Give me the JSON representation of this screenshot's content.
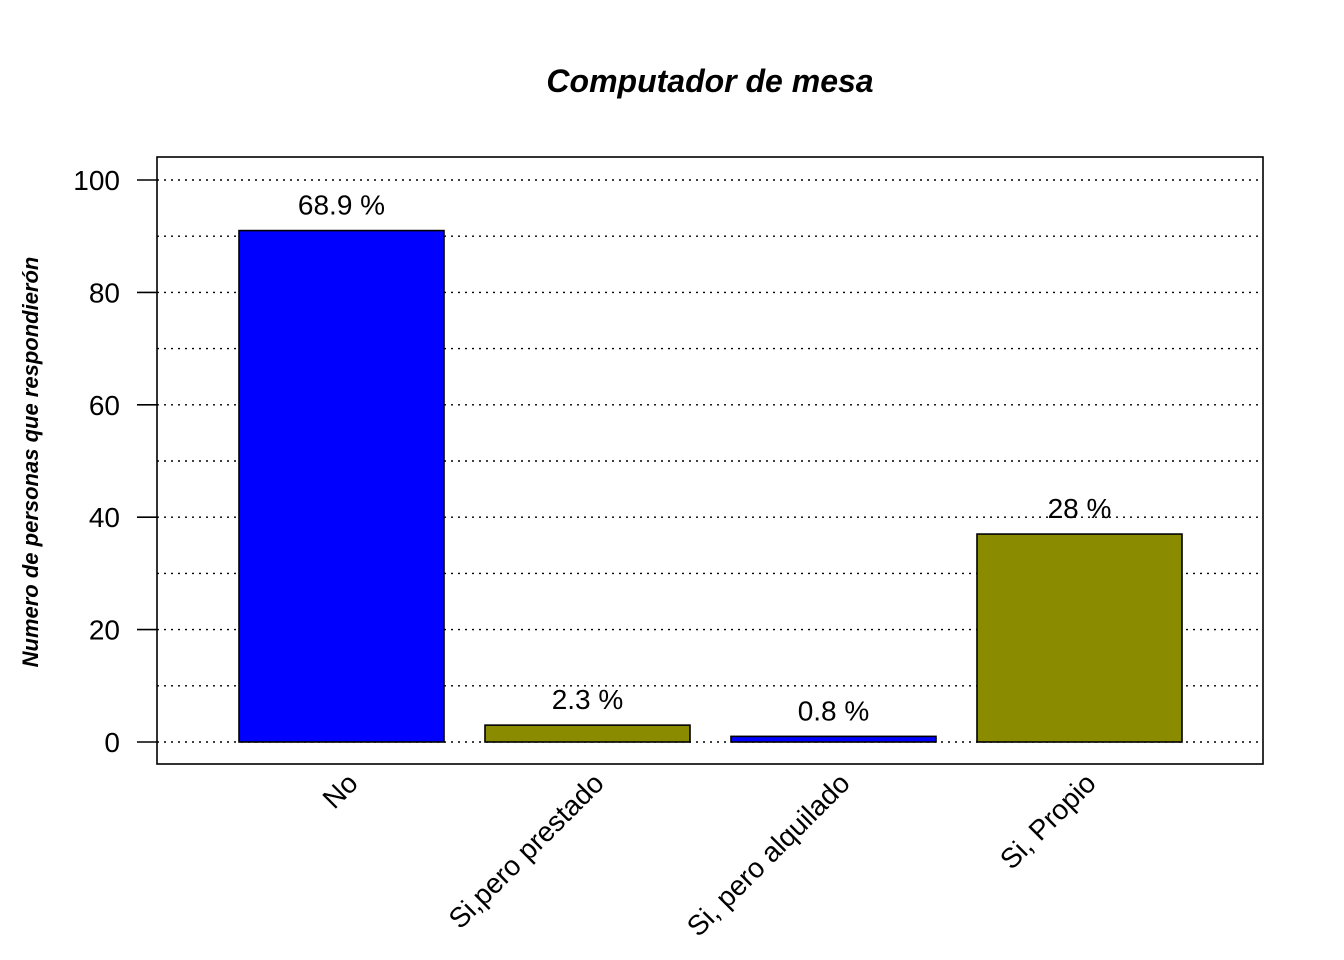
{
  "chart_data": {
    "type": "bar",
    "title": "Computador de mesa",
    "xlabel": "",
    "ylabel": "Numero de personas que respondierón",
    "categories": [
      "No",
      "Si,pero prestado",
      "Si, pero alquilado",
      "Si, Propio"
    ],
    "values": [
      91,
      3,
      1,
      37
    ],
    "data_labels": [
      "68.9 %",
      "2.3 %",
      "0.8 %",
      "28 %"
    ],
    "bar_colors": [
      "#0000FF",
      "#8B8B00",
      "#0000FF",
      "#8B8B00"
    ],
    "ylim": [
      0,
      104
    ],
    "yticks": [
      0,
      20,
      40,
      60,
      80,
      100
    ],
    "grid_lines": [
      0,
      10,
      20,
      30,
      40,
      50,
      60,
      70,
      80,
      90,
      100
    ],
    "grid": true,
    "x_label_rotation": -45
  }
}
